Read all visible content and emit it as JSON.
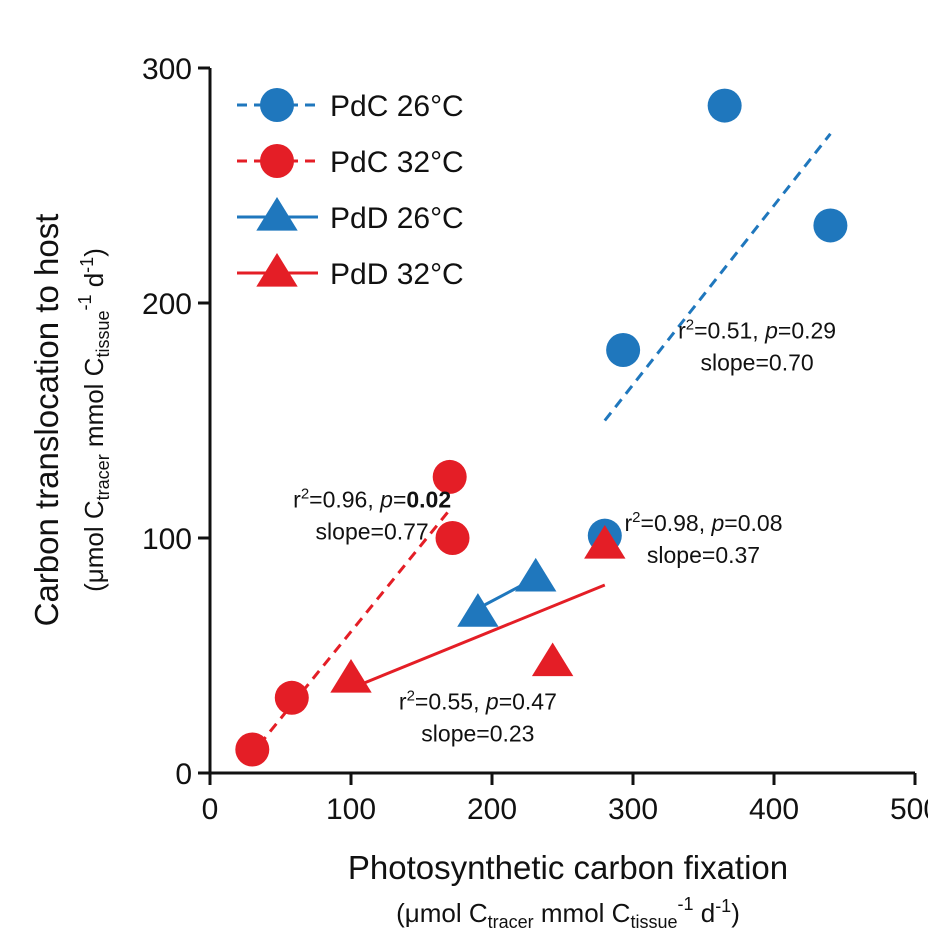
{
  "chart_data": {
    "type": "scatter",
    "title": "",
    "xlabel": "Photosynthetic carbon fixation",
    "xlabel_units": {
      "pre": "(μmol C",
      "sub1": "tracer",
      "mid": " mmol C",
      "sub2": "tissue",
      "sup": "-1",
      "post": " d",
      "sup2": "-1",
      "close": ")"
    },
    "ylabel": "Carbon translocation to host",
    "ylabel_units": {
      "pre": "(μmol C",
      "sub1": "tracer",
      "mid": " mmol C",
      "sub2": "tissue",
      "sup": "-1",
      "post": " d",
      "sup2": "-1",
      "close": ")"
    },
    "xlim": [
      0,
      500
    ],
    "ylim": [
      0,
      300
    ],
    "x_ticks": [
      "0",
      "100",
      "200",
      "300",
      "400",
      "500"
    ],
    "y_ticks": [
      "0",
      "100",
      "200",
      "300"
    ],
    "grid": false,
    "legend_position": "top-left",
    "series": [
      {
        "name": "PdC 26°C",
        "color": "#1f77bd",
        "marker": "circle",
        "line": "dashed",
        "points": [
          [
            280,
            101
          ],
          [
            293,
            180
          ],
          [
            365,
            284
          ],
          [
            440,
            233
          ]
        ],
        "fit": [
          [
            280,
            150
          ],
          [
            440,
            272
          ]
        ]
      },
      {
        "name": "PdC 32°C",
        "color": "#e41e26",
        "marker": "circle",
        "line": "dashed",
        "points": [
          [
            30,
            10
          ],
          [
            58,
            32
          ],
          [
            170,
            126
          ],
          [
            172,
            100
          ]
        ],
        "fit": [
          [
            35,
            12
          ],
          [
            170,
            112
          ]
        ]
      },
      {
        "name": "PdD 26°C",
        "color": "#1f77bd",
        "marker": "triangle",
        "line": "solid",
        "points": [
          [
            190,
            68
          ],
          [
            231,
            83
          ]
        ],
        "fit": [
          [
            190,
            70
          ],
          [
            231,
            83
          ]
        ]
      },
      {
        "name": "PdD 32°C",
        "color": "#e41e26",
        "marker": "triangle",
        "line": "solid",
        "points": [
          [
            100,
            40
          ],
          [
            243,
            47
          ],
          [
            280,
            97
          ]
        ],
        "fit": [
          [
            100,
            36
          ],
          [
            280,
            80
          ]
        ]
      }
    ],
    "annotations": [
      {
        "r2": "0.51",
        "p": "0.29",
        "p_bold": false,
        "slope": "slope=0.70",
        "x": 388,
        "y": 185
      },
      {
        "r2": "0.96",
        "p": "0.02",
        "p_bold": true,
        "slope": "slope=0.77",
        "x": 115,
        "y": 113
      },
      {
        "r2": "0.98",
        "p": "0.08",
        "p_bold": false,
        "slope": "slope=0.37",
        "x": 350,
        "y": 103
      },
      {
        "r2": "0.55",
        "p": "0.47",
        "p_bold": false,
        "slope": "slope=0.23",
        "x": 190,
        "y": 27
      }
    ]
  }
}
